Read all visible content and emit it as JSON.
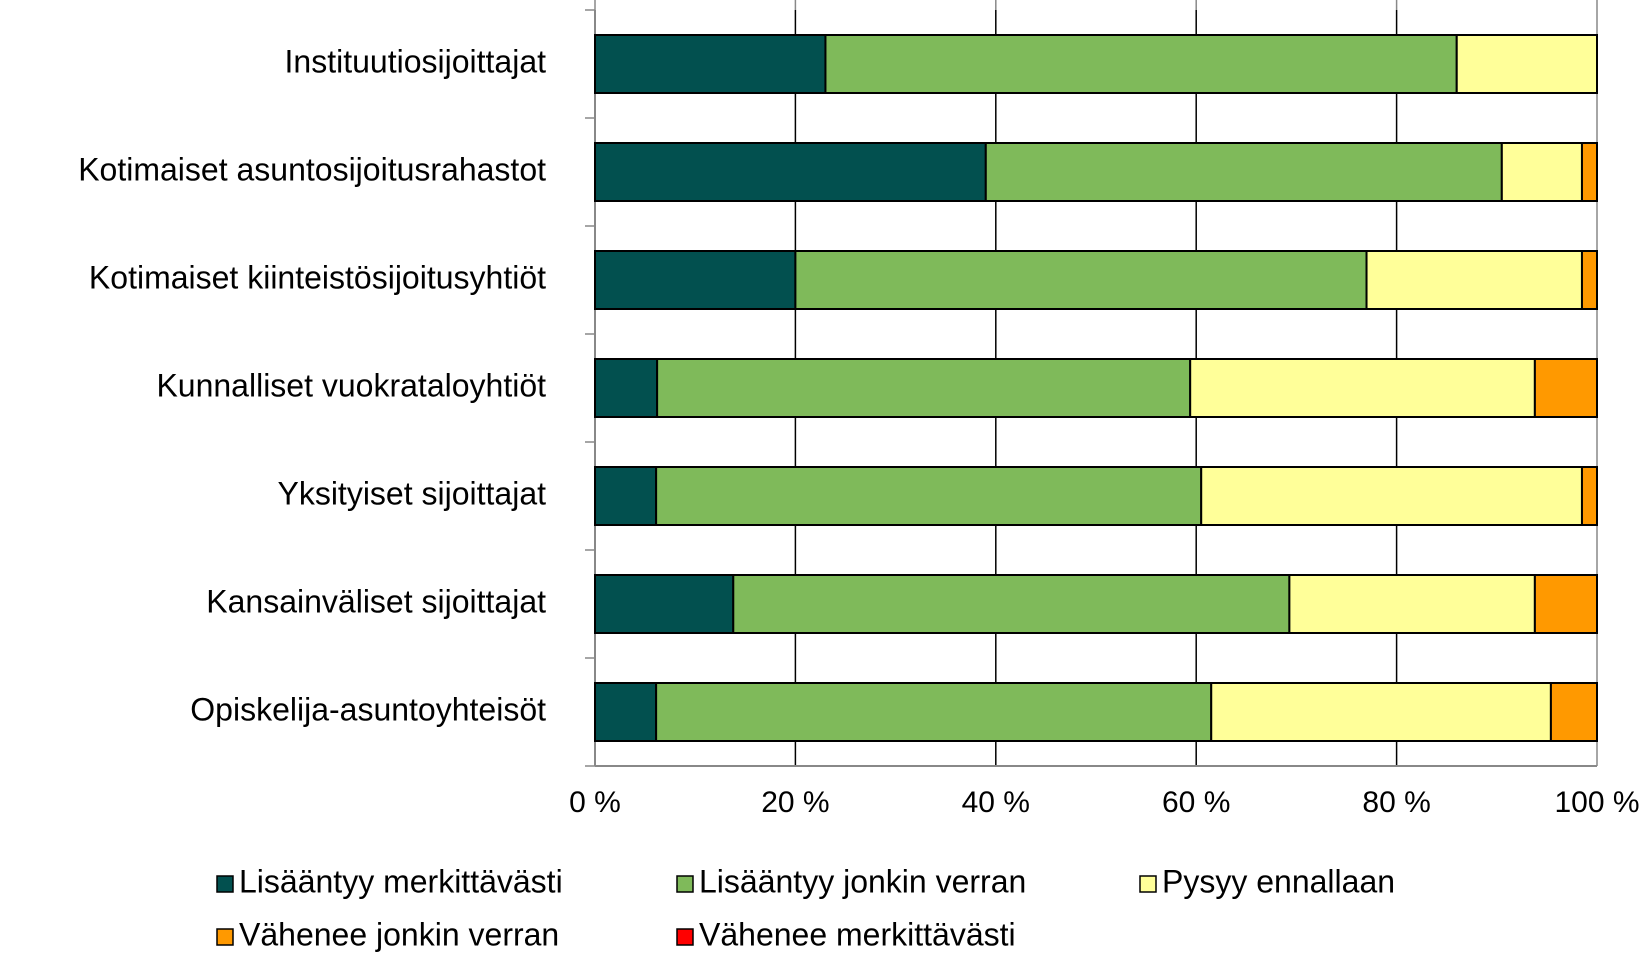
{
  "chart_data": {
    "type": "stacked_barh",
    "categories": [
      "Instituutiosijoittajat",
      "Kotimaiset asuntosijoitusrahastot",
      "Kotimaiset kiinteistösijoitusyhtiöt",
      "Kunnalliset vuokrataloyhtiöt",
      "Yksityiset sijoittajat",
      "Kansainväliset sijoittajat",
      "Opiskelija-asuntoyhteisöt"
    ],
    "series": [
      {
        "name": "Lisääntyy merkittävästi",
        "color": "#02504f",
        "values": [
          23,
          39,
          20,
          6.2,
          6.1,
          13.8,
          6.1
        ]
      },
      {
        "name": "Lisääntyy jonkin verran",
        "color": "#7fba5a",
        "values": [
          63,
          51.5,
          57,
          53.2,
          54.4,
          55.5,
          55.4
        ]
      },
      {
        "name": "Pysyy ennallaan",
        "color": "#ffff99",
        "values": [
          14,
          8,
          21.5,
          34.4,
          38,
          24.5,
          33.9
        ]
      },
      {
        "name": "Vähenee jonkin verran",
        "color": "#ff9900",
        "values": [
          0,
          1.5,
          1.5,
          6.2,
          1.5,
          6.2,
          4.6
        ]
      },
      {
        "name": "Vähenee merkittävästi",
        "color": "#ff0000",
        "values": [
          0,
          0,
          0,
          0,
          0,
          0,
          0
        ]
      }
    ],
    "xlim": [
      0,
      100
    ],
    "xticks": [
      {
        "value": 0,
        "label": "0 %"
      },
      {
        "value": 20,
        "label": "20 %"
      },
      {
        "value": 40,
        "label": "40 %"
      },
      {
        "value": 60,
        "label": "60 %"
      },
      {
        "value": 80,
        "label": "80 %"
      },
      {
        "value": 100,
        "label": "100 %"
      }
    ],
    "grid": true
  }
}
